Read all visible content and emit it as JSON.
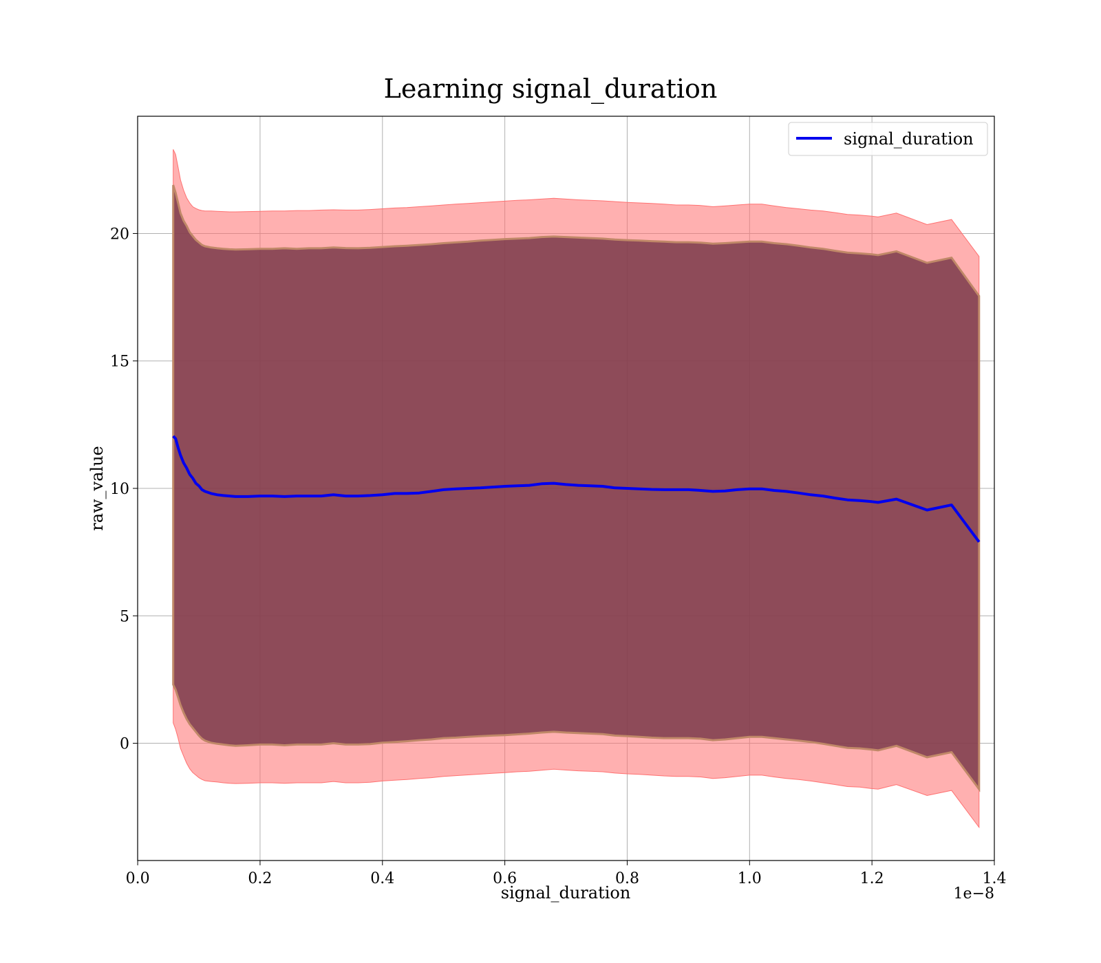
{
  "chart_data": {
    "type": "line",
    "title": "Learning signal_duration",
    "xlabel": "signal_duration",
    "ylabel": "raw_value",
    "x_offset_label": "1e−8",
    "xlim": [
      -0.0001,
      1.4
    ],
    "ylim": [
      -4.6,
      24.6
    ],
    "x_ticks": [
      0.0,
      0.2,
      0.4,
      0.6,
      0.8,
      1.0,
      1.2,
      1.4
    ],
    "x_tick_labels": [
      "0.0",
      "0.2",
      "0.4",
      "0.6",
      "0.8",
      "1.0",
      "1.2",
      "1.4"
    ],
    "y_ticks": [
      0,
      5,
      10,
      15,
      20
    ],
    "y_tick_labels": [
      "0",
      "5",
      "10",
      "15",
      "20"
    ],
    "grid": true,
    "legend": {
      "position": "top-right",
      "entries": [
        "signal_duration"
      ]
    },
    "colors": {
      "line": "#0000ee",
      "outer_band": "#ff7070",
      "inner_band": "#7a3a4a",
      "band_edge": "#c08868"
    },
    "series": [
      {
        "name": "signal_duration",
        "x": [
          0.058,
          0.062,
          0.066,
          0.07,
          0.075,
          0.08,
          0.085,
          0.09,
          0.095,
          0.1,
          0.105,
          0.11,
          0.12,
          0.13,
          0.14,
          0.15,
          0.16,
          0.18,
          0.2,
          0.22,
          0.24,
          0.26,
          0.28,
          0.3,
          0.32,
          0.34,
          0.36,
          0.38,
          0.4,
          0.42,
          0.44,
          0.46,
          0.48,
          0.5,
          0.52,
          0.54,
          0.56,
          0.58,
          0.6,
          0.62,
          0.64,
          0.66,
          0.68,
          0.7,
          0.72,
          0.74,
          0.76,
          0.78,
          0.8,
          0.82,
          0.84,
          0.86,
          0.88,
          0.9,
          0.92,
          0.94,
          0.96,
          0.98,
          1.0,
          1.02,
          1.04,
          1.06,
          1.08,
          1.1,
          1.12,
          1.14,
          1.16,
          1.18,
          1.2,
          1.21,
          1.24,
          1.29,
          1.33,
          1.375
        ],
        "mean": [
          12.05,
          11.95,
          11.6,
          11.3,
          11.0,
          10.8,
          10.55,
          10.4,
          10.2,
          10.1,
          9.95,
          9.88,
          9.8,
          9.75,
          9.72,
          9.7,
          9.68,
          9.68,
          9.7,
          9.7,
          9.68,
          9.7,
          9.7,
          9.7,
          9.75,
          9.7,
          9.7,
          9.72,
          9.75,
          9.8,
          9.8,
          9.82,
          9.88,
          9.95,
          9.98,
          10.0,
          10.02,
          10.05,
          10.08,
          10.1,
          10.12,
          10.18,
          10.2,
          10.15,
          10.12,
          10.1,
          10.08,
          10.02,
          10.0,
          9.98,
          9.96,
          9.95,
          9.95,
          9.95,
          9.92,
          9.88,
          9.9,
          9.95,
          9.98,
          9.98,
          9.92,
          9.88,
          9.82,
          9.75,
          9.7,
          9.62,
          9.55,
          9.52,
          9.48,
          9.45,
          9.58,
          9.15,
          9.35,
          7.9
        ],
        "upper_std": [
          21.9,
          21.6,
          21.2,
          20.8,
          20.5,
          20.3,
          20.05,
          19.9,
          19.75,
          19.65,
          19.55,
          19.5,
          19.45,
          19.42,
          19.4,
          19.38,
          19.37,
          19.38,
          19.4,
          19.4,
          19.42,
          19.4,
          19.42,
          19.42,
          19.45,
          19.43,
          19.42,
          19.44,
          19.47,
          19.5,
          19.52,
          19.55,
          19.58,
          19.62,
          19.65,
          19.68,
          19.72,
          19.75,
          19.78,
          19.8,
          19.82,
          19.86,
          19.88,
          19.86,
          19.84,
          19.82,
          19.8,
          19.76,
          19.74,
          19.72,
          19.7,
          19.68,
          19.66,
          19.66,
          19.64,
          19.6,
          19.62,
          19.65,
          19.68,
          19.68,
          19.62,
          19.58,
          19.52,
          19.45,
          19.4,
          19.32,
          19.25,
          19.22,
          19.18,
          19.15,
          19.3,
          18.85,
          19.05,
          17.55
        ],
        "lower_std": [
          2.3,
          2.1,
          1.8,
          1.5,
          1.2,
          0.95,
          0.75,
          0.6,
          0.45,
          0.3,
          0.18,
          0.1,
          0.02,
          -0.02,
          -0.05,
          -0.08,
          -0.1,
          -0.08,
          -0.05,
          -0.05,
          -0.08,
          -0.05,
          -0.05,
          -0.05,
          0.0,
          -0.05,
          -0.05,
          -0.03,
          0.02,
          0.05,
          0.08,
          0.12,
          0.15,
          0.2,
          0.22,
          0.25,
          0.28,
          0.3,
          0.32,
          0.35,
          0.38,
          0.42,
          0.45,
          0.42,
          0.4,
          0.38,
          0.36,
          0.3,
          0.28,
          0.25,
          0.22,
          0.2,
          0.2,
          0.2,
          0.18,
          0.12,
          0.15,
          0.2,
          0.25,
          0.25,
          0.2,
          0.15,
          0.1,
          0.05,
          -0.02,
          -0.1,
          -0.18,
          -0.2,
          -0.25,
          -0.28,
          -0.1,
          -0.55,
          -0.35,
          -1.8
        ],
        "upper_2std": [
          23.3,
          23.1,
          22.6,
          22.1,
          21.7,
          21.4,
          21.2,
          21.05,
          20.98,
          20.93,
          20.9,
          20.88,
          20.88,
          20.87,
          20.86,
          20.85,
          20.85,
          20.86,
          20.87,
          20.88,
          20.88,
          20.9,
          20.9,
          20.92,
          20.93,
          20.92,
          20.92,
          20.94,
          20.97,
          21.0,
          21.02,
          21.05,
          21.08,
          21.12,
          21.15,
          21.18,
          21.21,
          21.24,
          21.27,
          21.3,
          21.32,
          21.35,
          21.38,
          21.35,
          21.32,
          21.3,
          21.28,
          21.25,
          21.22,
          21.2,
          21.18,
          21.15,
          21.12,
          21.12,
          21.1,
          21.05,
          21.08,
          21.12,
          21.15,
          21.15,
          21.08,
          21.02,
          20.97,
          20.92,
          20.88,
          20.82,
          20.75,
          20.72,
          20.68,
          20.65,
          20.8,
          20.35,
          20.55,
          19.1
        ],
        "lower_2std": [
          0.8,
          0.55,
          0.2,
          -0.2,
          -0.5,
          -0.78,
          -1.0,
          -1.15,
          -1.25,
          -1.35,
          -1.42,
          -1.47,
          -1.5,
          -1.52,
          -1.55,
          -1.57,
          -1.58,
          -1.57,
          -1.55,
          -1.55,
          -1.57,
          -1.55,
          -1.55,
          -1.55,
          -1.5,
          -1.55,
          -1.55,
          -1.53,
          -1.48,
          -1.45,
          -1.42,
          -1.38,
          -1.35,
          -1.3,
          -1.27,
          -1.24,
          -1.21,
          -1.18,
          -1.15,
          -1.12,
          -1.1,
          -1.06,
          -1.02,
          -1.05,
          -1.08,
          -1.1,
          -1.12,
          -1.17,
          -1.2,
          -1.22,
          -1.25,
          -1.28,
          -1.3,
          -1.3,
          -1.32,
          -1.38,
          -1.35,
          -1.3,
          -1.25,
          -1.25,
          -1.32,
          -1.38,
          -1.42,
          -1.48,
          -1.55,
          -1.62,
          -1.7,
          -1.72,
          -1.78,
          -1.8,
          -1.62,
          -2.05,
          -1.85,
          -3.3
        ]
      }
    ]
  }
}
